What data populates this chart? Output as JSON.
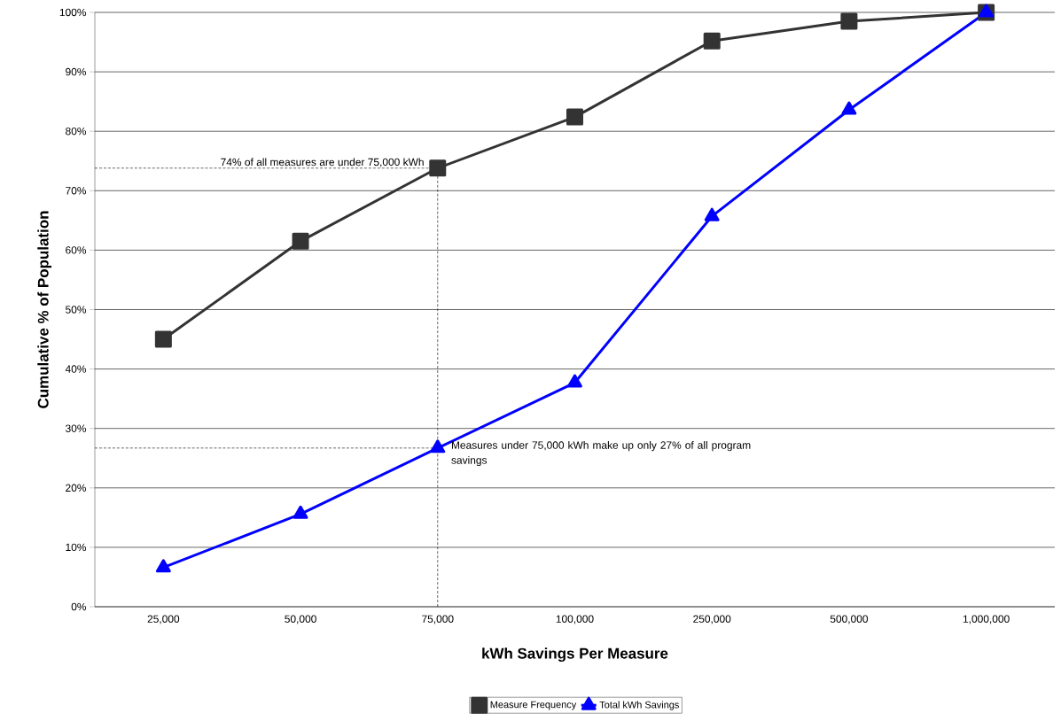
{
  "chart_data": {
    "type": "line",
    "xlabel": "kWh Savings Per Measure",
    "ylabel": "Cumulative % of Population",
    "categories": [
      "25,000",
      "50,000",
      "75,000",
      "100,000",
      "250,000",
      "500,000",
      "1,000,000"
    ],
    "series": [
      {
        "name": "Measure Frequency",
        "color": "#333333",
        "marker": "square",
        "values": [
          45,
          61.5,
          73.8,
          82.4,
          95.2,
          98.5,
          100
        ]
      },
      {
        "name": "Total kWh Savings",
        "color": "#0000ff",
        "marker": "triangle",
        "values": [
          6.6,
          15.6,
          26.7,
          37.7,
          65.7,
          83.6,
          100
        ]
      }
    ],
    "ylim": [
      0,
      100
    ],
    "yticks": [
      {
        "value": 0,
        "label": "0%"
      },
      {
        "value": 10,
        "label": "10%"
      },
      {
        "value": 20,
        "label": "20%"
      },
      {
        "value": 30,
        "label": "30%"
      },
      {
        "value": 40,
        "label": "40%"
      },
      {
        "value": 50,
        "label": "50%"
      },
      {
        "value": 60,
        "label": "60%"
      },
      {
        "value": 70,
        "label": "70%"
      },
      {
        "value": 80,
        "label": "80%"
      },
      {
        "value": 90,
        "label": "90%"
      },
      {
        "value": 100,
        "label": "100%"
      }
    ],
    "ref_lines": [
      {
        "axis": "y",
        "value": 73.8,
        "color": "#000000",
        "line_style": "dashed"
      },
      {
        "axis": "y",
        "value": 26.7,
        "color": "#000000",
        "line_style": "dashed"
      },
      {
        "axis": "x",
        "value": "75,000",
        "color": "#000000",
        "line_style": "dashed"
      }
    ],
    "grid": "y",
    "legend": "bottom",
    "line_style": "solid",
    "annotations": [
      {
        "text": "74% of all measures are under 75,000 kWh",
        "x": "75,000",
        "y": 73.8
      },
      {
        "text": "Measures under 75,000 kWh make up only 27% of all program savings",
        "x": "75,000",
        "y": 26.7
      }
    ]
  }
}
